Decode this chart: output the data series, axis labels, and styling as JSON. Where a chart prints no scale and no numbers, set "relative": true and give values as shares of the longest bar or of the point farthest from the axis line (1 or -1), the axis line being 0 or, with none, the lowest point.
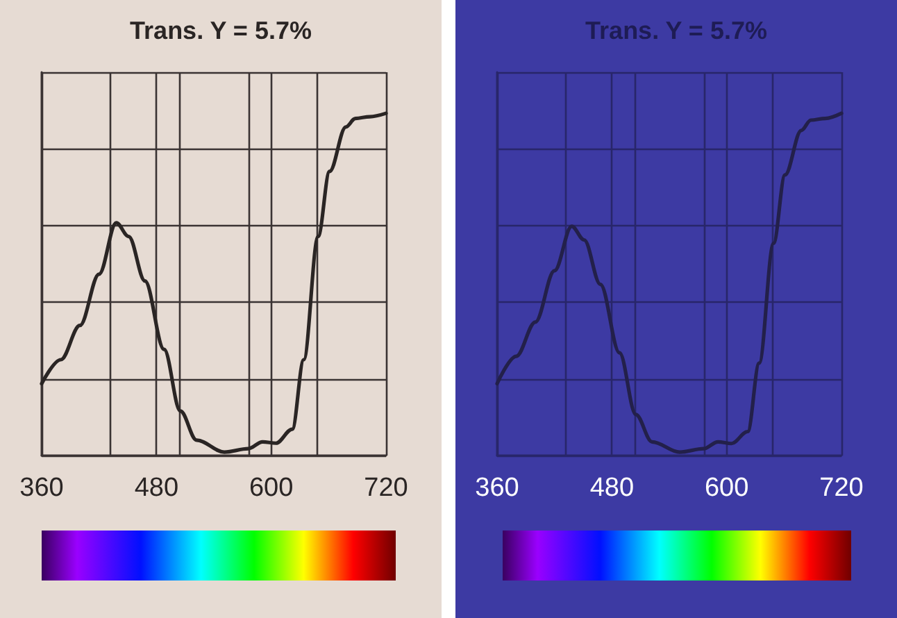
{
  "chart_data": [
    {
      "type": "line",
      "title": "Trans. Y = 5.7%",
      "relative": true,
      "grid": true,
      "tick_labels": "x",
      "marker": "none",
      "line_style": "solid",
      "xlim": [
        360,
        720
      ],
      "xticks": [
        360,
        {
          "value": 432,
          "label": null
        },
        480,
        {
          "value": 504,
          "label": null
        },
        {
          "value": 576,
          "label": null
        },
        600,
        {
          "value": 648,
          "label": null
        },
        720
      ],
      "x": [
        360,
        380,
        400,
        420,
        438,
        451,
        468,
        488,
        505,
        522,
        551,
        576,
        591,
        605,
        622,
        634,
        649,
        661,
        678,
        688,
        703,
        720
      ],
      "series": [
        {
          "color": "#2a2524",
          "values": [
            0.21,
            0.28,
            0.38,
            0.53,
            0.68,
            0.64,
            0.51,
            0.31,
            0.13,
            0.045,
            0.01,
            0.02,
            0.04,
            0.036,
            0.077,
            0.28,
            0.64,
            0.83,
            0.96,
            0.985,
            0.99,
            1
          ]
        }
      ]
    },
    {
      "type": "line",
      "title": "Trans. Y = 5.7%",
      "relative": true,
      "grid": true,
      "tick_labels": "x",
      "marker": "none",
      "line_style": "solid",
      "xlim": [
        360,
        720
      ],
      "xticks": [
        360,
        {
          "value": 432,
          "label": null
        },
        480,
        {
          "value": 504,
          "label": null
        },
        {
          "value": 576,
          "label": null
        },
        600,
        {
          "value": 648,
          "label": null
        },
        720
      ],
      "x": [
        360,
        380,
        400,
        420,
        438,
        451,
        468,
        488,
        505,
        522,
        551,
        576,
        591,
        605,
        622,
        634,
        649,
        661,
        678,
        688,
        703,
        720
      ],
      "series": [
        {
          "color": "#23204a",
          "values": [
            0.21,
            0.29,
            0.39,
            0.54,
            0.67,
            0.63,
            0.5,
            0.3,
            0.12,
            0.04,
            0.01,
            0.02,
            0.04,
            0.035,
            0.07,
            0.27,
            0.62,
            0.82,
            0.95,
            0.98,
            0.985,
            1
          ]
        }
      ]
    }
  ]
}
